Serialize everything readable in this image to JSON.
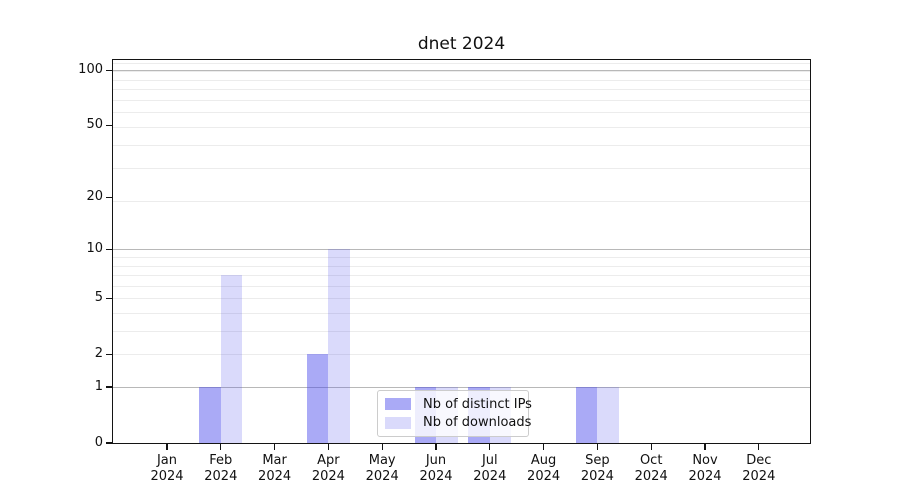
{
  "title": "dnet 2024",
  "legend": {
    "items": [
      {
        "label": "Nb of distinct IPs"
      },
      {
        "label": "Nb of downloads"
      }
    ]
  },
  "chart_data": {
    "type": "bar",
    "title": "dnet 2024",
    "categories": [
      "Jan 2024",
      "Feb 2024",
      "Mar 2024",
      "Apr 2024",
      "May 2024",
      "Jun 2024",
      "Jul 2024",
      "Aug 2024",
      "Sep 2024",
      "Oct 2024",
      "Nov 2024",
      "Dec 2024"
    ],
    "x_tick_month": [
      "Jan",
      "Feb",
      "Mar",
      "Apr",
      "May",
      "Jun",
      "Jul",
      "Aug",
      "Sep",
      "Oct",
      "Nov",
      "Dec"
    ],
    "x_tick_year": "2024",
    "series": [
      {
        "name": "Nb of distinct IPs",
        "color": "rgba(70,70,235,0.46)",
        "solid_color": "#aaaaf6",
        "values": [
          0,
          1,
          0,
          2,
          0,
          1,
          1,
          0,
          1,
          0,
          0,
          0
        ]
      },
      {
        "name": "Nb of downloads",
        "color": "rgba(70,70,235,0.20)",
        "solid_color": "#dadafb",
        "values": [
          0,
          7,
          0,
          10,
          0,
          1,
          1,
          0,
          1,
          0,
          0,
          0
        ]
      }
    ],
    "xlabel": "",
    "ylabel": "",
    "yscale": "log10(1+v)",
    "ylim": [
      0,
      114
    ],
    "yticks": [
      0,
      1,
      2,
      5,
      10,
      20,
      50,
      100
    ],
    "grid": true,
    "gridlines": {
      "major": [
        1,
        10,
        100
      ],
      "minor": [
        2,
        3,
        4,
        5,
        6,
        7,
        8,
        9,
        19,
        29,
        39,
        49,
        59,
        69,
        79,
        89,
        99,
        109
      ]
    },
    "legend_position": "inside-bottom-center",
    "colors": {
      "axis": "#141414",
      "major_grid": "#b8b8b8",
      "minor_grid": "#ececec",
      "background": "#ffffff"
    }
  }
}
